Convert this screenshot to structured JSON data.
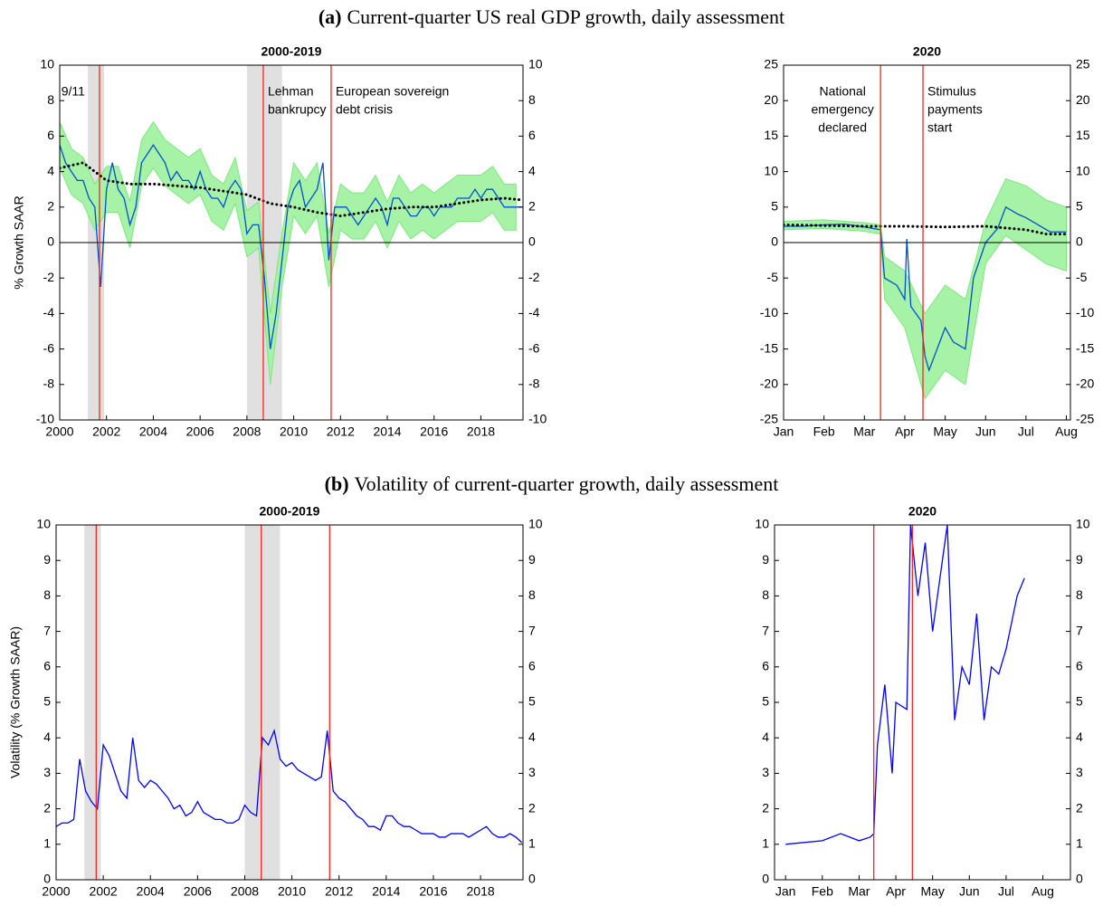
{
  "captions": [
    {
      "label": "(a)",
      "text": "Current-quarter US real GDP growth, daily assessment"
    },
    {
      "label": "(b)",
      "text": "Volatility of current-quarter growth, daily assessment"
    }
  ],
  "chart_data": [
    {
      "type": "line",
      "title": "2000-2019",
      "ylabel": "% Growth SAAR",
      "xlim": [
        2000,
        2019.8
      ],
      "ylim": [
        -10,
        10
      ],
      "xticks": [
        2000,
        2002,
        2004,
        2006,
        2008,
        2010,
        2012,
        2014,
        2016,
        2018
      ],
      "yticks": [
        -10,
        -8,
        -6,
        -4,
        -2,
        0,
        2,
        4,
        6,
        8,
        10
      ],
      "hline": 0,
      "spans": [
        [
          2001.2,
          2001.9
        ],
        [
          2008.0,
          2009.5
        ]
      ],
      "events": [
        {
          "x": 2001.7,
          "text": [
            "9/11"
          ],
          "side": "left"
        },
        {
          "x": 2008.7,
          "text": [
            "Lehman",
            "bankrupcy"
          ],
          "side": "right"
        },
        {
          "x": 2011.6,
          "text": [
            "European sovereign",
            "debt crisis"
          ],
          "side": "right"
        }
      ],
      "series": [
        {
          "kind": "band",
          "color": "#a6f2a6",
          "x": [
            2000,
            2000.5,
            2001,
            2001.5,
            2002,
            2002.5,
            2003,
            2003.5,
            2004,
            2004.5,
            2005,
            2005.5,
            2006,
            2006.5,
            2007,
            2007.5,
            2008,
            2008.5,
            2009,
            2009.5,
            2010,
            2010.5,
            2011,
            2011.5,
            2012,
            2012.5,
            2013,
            2013.5,
            2014,
            2014.5,
            2015,
            2015.5,
            2016,
            2016.5,
            2017,
            2017.5,
            2018,
            2018.5,
            2019,
            2019.5
          ],
          "upper": [
            6.8,
            5.3,
            4.8,
            3.3,
            4.3,
            4.3,
            2.3,
            5.8,
            6.8,
            5.8,
            5.3,
            4.8,
            5.3,
            3.8,
            3.3,
            4.8,
            1.8,
            2.3,
            -4,
            0.5,
            4.5,
            3.5,
            4.5,
            0.5,
            3.3,
            2.8,
            2.8,
            3.8,
            2.3,
            3.8,
            2.8,
            3.3,
            2.8,
            3.3,
            3.8,
            3.8,
            3.8,
            4.3,
            3.3,
            3.3
          ],
          "lower": [
            4.2,
            2.7,
            2.2,
            0.7,
            1.7,
            1.7,
            -0.3,
            3.2,
            4.2,
            3.2,
            2.7,
            2.2,
            2.7,
            1.2,
            0.7,
            2.2,
            -0.8,
            -0.3,
            -8,
            -2.5,
            1.5,
            0.5,
            1.5,
            -2.5,
            0.7,
            0.2,
            0.2,
            1.2,
            -0.3,
            1.2,
            0.2,
            0.7,
            0.2,
            0.7,
            1.2,
            1.2,
            1.2,
            1.7,
            0.7,
            0.7
          ]
        },
        {
          "kind": "line",
          "color": "#0050d0",
          "x": [
            2000,
            2000.25,
            2000.5,
            2000.75,
            2001,
            2001.25,
            2001.5,
            2001.75,
            2002,
            2002.25,
            2002.5,
            2002.75,
            2003,
            2003.25,
            2003.5,
            2003.75,
            2004,
            2004.25,
            2004.5,
            2004.75,
            2005,
            2005.25,
            2005.5,
            2005.75,
            2006,
            2006.25,
            2006.5,
            2006.75,
            2007,
            2007.25,
            2007.5,
            2007.75,
            2008,
            2008.25,
            2008.5,
            2008.75,
            2009,
            2009.25,
            2009.5,
            2009.75,
            2010,
            2010.25,
            2010.5,
            2010.75,
            2011,
            2011.25,
            2011.5,
            2011.75,
            2012,
            2012.25,
            2012.5,
            2012.75,
            2013,
            2013.25,
            2013.5,
            2013.75,
            2014,
            2014.25,
            2014.5,
            2014.75,
            2015,
            2015.25,
            2015.5,
            2015.75,
            2016,
            2016.25,
            2016.5,
            2016.75,
            2017,
            2017.25,
            2017.5,
            2017.75,
            2018,
            2018.25,
            2018.5,
            2018.75,
            2019,
            2019.25,
            2019.5,
            2019.75
          ],
          "values": [
            5.5,
            4.5,
            4,
            3.5,
            3.5,
            2.5,
            2,
            -2.5,
            3,
            4.5,
            3,
            2.5,
            1,
            2,
            4.5,
            5,
            5.5,
            5,
            4.5,
            3.5,
            4,
            3.5,
            3.5,
            3,
            4,
            3,
            2.5,
            2.5,
            2,
            3,
            3.5,
            3,
            0.5,
            1,
            1,
            -2,
            -6,
            -4,
            -1,
            2,
            3,
            3.5,
            2,
            2.5,
            3,
            4.5,
            -1,
            2,
            2,
            2,
            1.5,
            1,
            1.5,
            2,
            2.5,
            2,
            1,
            2.5,
            2.5,
            2,
            1.5,
            1.5,
            2,
            2,
            1.5,
            2,
            2,
            2,
            2.5,
            2.5,
            2.5,
            3,
            2.5,
            3,
            3,
            2.5,
            2,
            2,
            2,
            2
          ]
        },
        {
          "kind": "dotted",
          "color": "#000000",
          "x": [
            2000,
            2001,
            2002,
            2003,
            2004,
            2005,
            2006,
            2007,
            2008,
            2009,
            2010,
            2011,
            2012,
            2013,
            2014,
            2015,
            2016,
            2017,
            2018,
            2019,
            2019.75
          ],
          "values": [
            4.2,
            4.5,
            3.5,
            3.3,
            3.3,
            3.2,
            3.1,
            2.9,
            2.7,
            2.2,
            2.0,
            1.7,
            1.5,
            1.7,
            1.9,
            2.0,
            2.0,
            2.2,
            2.4,
            2.5,
            2.4
          ]
        }
      ]
    },
    {
      "type": "line",
      "title": "2020",
      "xlim": [
        1,
        8.1
      ],
      "ylim": [
        -25,
        25
      ],
      "xticks": [
        {
          "value": 1,
          "label": "Jan"
        },
        {
          "value": 2,
          "label": "Feb"
        },
        {
          "value": 3,
          "label": "Mar"
        },
        {
          "value": 4,
          "label": "Apr"
        },
        {
          "value": 5,
          "label": "May"
        },
        {
          "value": 6,
          "label": "Jun"
        },
        {
          "value": 7,
          "label": "Jul"
        },
        {
          "value": 8,
          "label": "Aug"
        }
      ],
      "yticks": [
        -25,
        -20,
        -15,
        -10,
        -5,
        0,
        5,
        10,
        15,
        20,
        25
      ],
      "hline": 0,
      "spans": [],
      "events": [
        {
          "x": 3.4,
          "text": [
            "National",
            "emergency",
            "declared"
          ],
          "side": "left"
        },
        {
          "x": 4.45,
          "text": [
            "Stimulus",
            "payments",
            "start"
          ],
          "side": "right"
        }
      ],
      "series": [
        {
          "kind": "band",
          "color": "#a6f2a6",
          "x": [
            1,
            2,
            3,
            3.4,
            3.5,
            4,
            4.5,
            5,
            5.5,
            6,
            6.5,
            7,
            7.5,
            8
          ],
          "upper": [
            3,
            3.2,
            2.8,
            2.5,
            -2,
            -4,
            -10,
            -6,
            -8,
            3,
            9,
            8,
            6,
            5
          ],
          "lower": [
            1.8,
            2.0,
            1.6,
            1.2,
            -8,
            -12,
            -22,
            -18,
            -20,
            -3,
            1,
            -1,
            -3,
            -4
          ]
        },
        {
          "kind": "line",
          "color": "#0050d0",
          "x": [
            1,
            1.5,
            2,
            2.5,
            3,
            3.4,
            3.5,
            3.8,
            4.0,
            4.05,
            4.15,
            4.4,
            4.5,
            4.6,
            4.8,
            5.0,
            5.2,
            5.5,
            5.7,
            6.0,
            6.3,
            6.5,
            6.8,
            7.0,
            7.3,
            7.6,
            8.0
          ],
          "values": [
            2.3,
            2.3,
            2.5,
            2.6,
            2.2,
            1.8,
            -5,
            -6,
            -8,
            0.5,
            -9,
            -11,
            -16,
            -18,
            -15,
            -12,
            -14,
            -15,
            -5,
            0,
            2,
            5,
            4,
            3.5,
            2.5,
            1.5,
            1.5
          ]
        },
        {
          "kind": "dotted",
          "color": "#000000",
          "x": [
            1,
            3,
            4,
            5,
            6,
            7,
            7.5,
            8
          ],
          "values": [
            2.5,
            2.3,
            2.3,
            2.2,
            2.3,
            1.8,
            1.2,
            1.2
          ]
        }
      ]
    },
    {
      "type": "line",
      "title": "2000-2019",
      "ylabel": "Volatility (% Growth SAAR)",
      "xlim": [
        2000,
        2019.8
      ],
      "ylim": [
        0,
        10
      ],
      "xticks": [
        2000,
        2002,
        2004,
        2006,
        2008,
        2010,
        2012,
        2014,
        2016,
        2018
      ],
      "yticks": [
        0,
        1,
        2,
        3,
        4,
        5,
        6,
        7,
        8,
        9,
        10
      ],
      "spans": [
        [
          2001.2,
          2001.9
        ],
        [
          2008.0,
          2009.5
        ]
      ],
      "events": [
        {
          "x": 2001.7
        },
        {
          "x": 2008.7
        },
        {
          "x": 2011.6
        }
      ],
      "series": [
        {
          "kind": "line",
          "color": "#0000ff",
          "x": [
            2000,
            2000.25,
            2000.5,
            2000.75,
            2001,
            2001.25,
            2001.5,
            2001.75,
            2002,
            2002.25,
            2002.5,
            2002.75,
            2003,
            2003.25,
            2003.5,
            2003.75,
            2004,
            2004.25,
            2004.5,
            2004.75,
            2005,
            2005.25,
            2005.5,
            2005.75,
            2006,
            2006.25,
            2006.5,
            2006.75,
            2007,
            2007.25,
            2007.5,
            2007.75,
            2008,
            2008.25,
            2008.5,
            2008.75,
            2009,
            2009.25,
            2009.5,
            2009.75,
            2010,
            2010.25,
            2010.5,
            2010.75,
            2011,
            2011.25,
            2011.5,
            2011.75,
            2012,
            2012.25,
            2012.5,
            2012.75,
            2013,
            2013.25,
            2013.5,
            2013.75,
            2014,
            2014.25,
            2014.5,
            2014.75,
            2015,
            2015.25,
            2015.5,
            2015.75,
            2016,
            2016.25,
            2016.5,
            2016.75,
            2017,
            2017.25,
            2017.5,
            2017.75,
            2018,
            2018.25,
            2018.5,
            2018.75,
            2019,
            2019.25,
            2019.5,
            2019.75
          ],
          "values": [
            1.5,
            1.6,
            1.6,
            1.7,
            3.4,
            2.5,
            2.2,
            2.0,
            3.8,
            3.5,
            3.0,
            2.5,
            2.3,
            4.0,
            2.8,
            2.6,
            2.8,
            2.7,
            2.5,
            2.3,
            2.0,
            2.1,
            1.8,
            1.9,
            2.2,
            1.9,
            1.8,
            1.7,
            1.7,
            1.6,
            1.6,
            1.7,
            2.1,
            1.9,
            1.8,
            4.0,
            3.8,
            4.2,
            3.4,
            3.2,
            3.3,
            3.1,
            3.0,
            2.9,
            2.8,
            2.9,
            4.2,
            2.5,
            2.3,
            2.2,
            2.0,
            1.8,
            1.7,
            1.5,
            1.5,
            1.4,
            1.8,
            1.8,
            1.6,
            1.5,
            1.5,
            1.4,
            1.3,
            1.3,
            1.3,
            1.2,
            1.2,
            1.3,
            1.3,
            1.3,
            1.2,
            1.3,
            1.4,
            1.5,
            1.3,
            1.2,
            1.2,
            1.3,
            1.2,
            1.05
          ]
        }
      ]
    },
    {
      "type": "line",
      "title": "2020",
      "xlim": [
        0.7,
        8.75
      ],
      "ylim": [
        0,
        10
      ],
      "xticks": [
        {
          "value": 1,
          "label": "Jan"
        },
        {
          "value": 2,
          "label": "Feb"
        },
        {
          "value": 3,
          "label": "Mar"
        },
        {
          "value": 4,
          "label": "Apr"
        },
        {
          "value": 5,
          "label": "May"
        },
        {
          "value": 6,
          "label": "Jun"
        },
        {
          "value": 7,
          "label": "Jul"
        },
        {
          "value": 8,
          "label": "Aug"
        }
      ],
      "yticks": [
        0,
        1,
        2,
        3,
        4,
        5,
        6,
        7,
        8,
        9,
        10
      ],
      "spans": [],
      "events": [
        {
          "x": 3.4
        },
        {
          "x": 4.45
        }
      ],
      "series": [
        {
          "kind": "line",
          "color": "#0000ff",
          "x": [
            1,
            2,
            2.5,
            3,
            3.3,
            3.4,
            3.5,
            3.7,
            3.9,
            4.0,
            4.3,
            4.4,
            4.6,
            4.8,
            5.0,
            5.2,
            5.4,
            5.6,
            5.8,
            6.0,
            6.2,
            6.4,
            6.6,
            6.8,
            7.0,
            7.3,
            7.5
          ],
          "values": [
            1.0,
            1.1,
            1.3,
            1.1,
            1.2,
            1.3,
            3.8,
            5.5,
            3,
            5,
            4.8,
            10,
            8,
            9.5,
            7,
            8.5,
            10,
            4.5,
            6,
            5.5,
            7.5,
            4.5,
            6,
            5.8,
            6.5,
            8,
            8.5
          ]
        }
      ]
    }
  ]
}
